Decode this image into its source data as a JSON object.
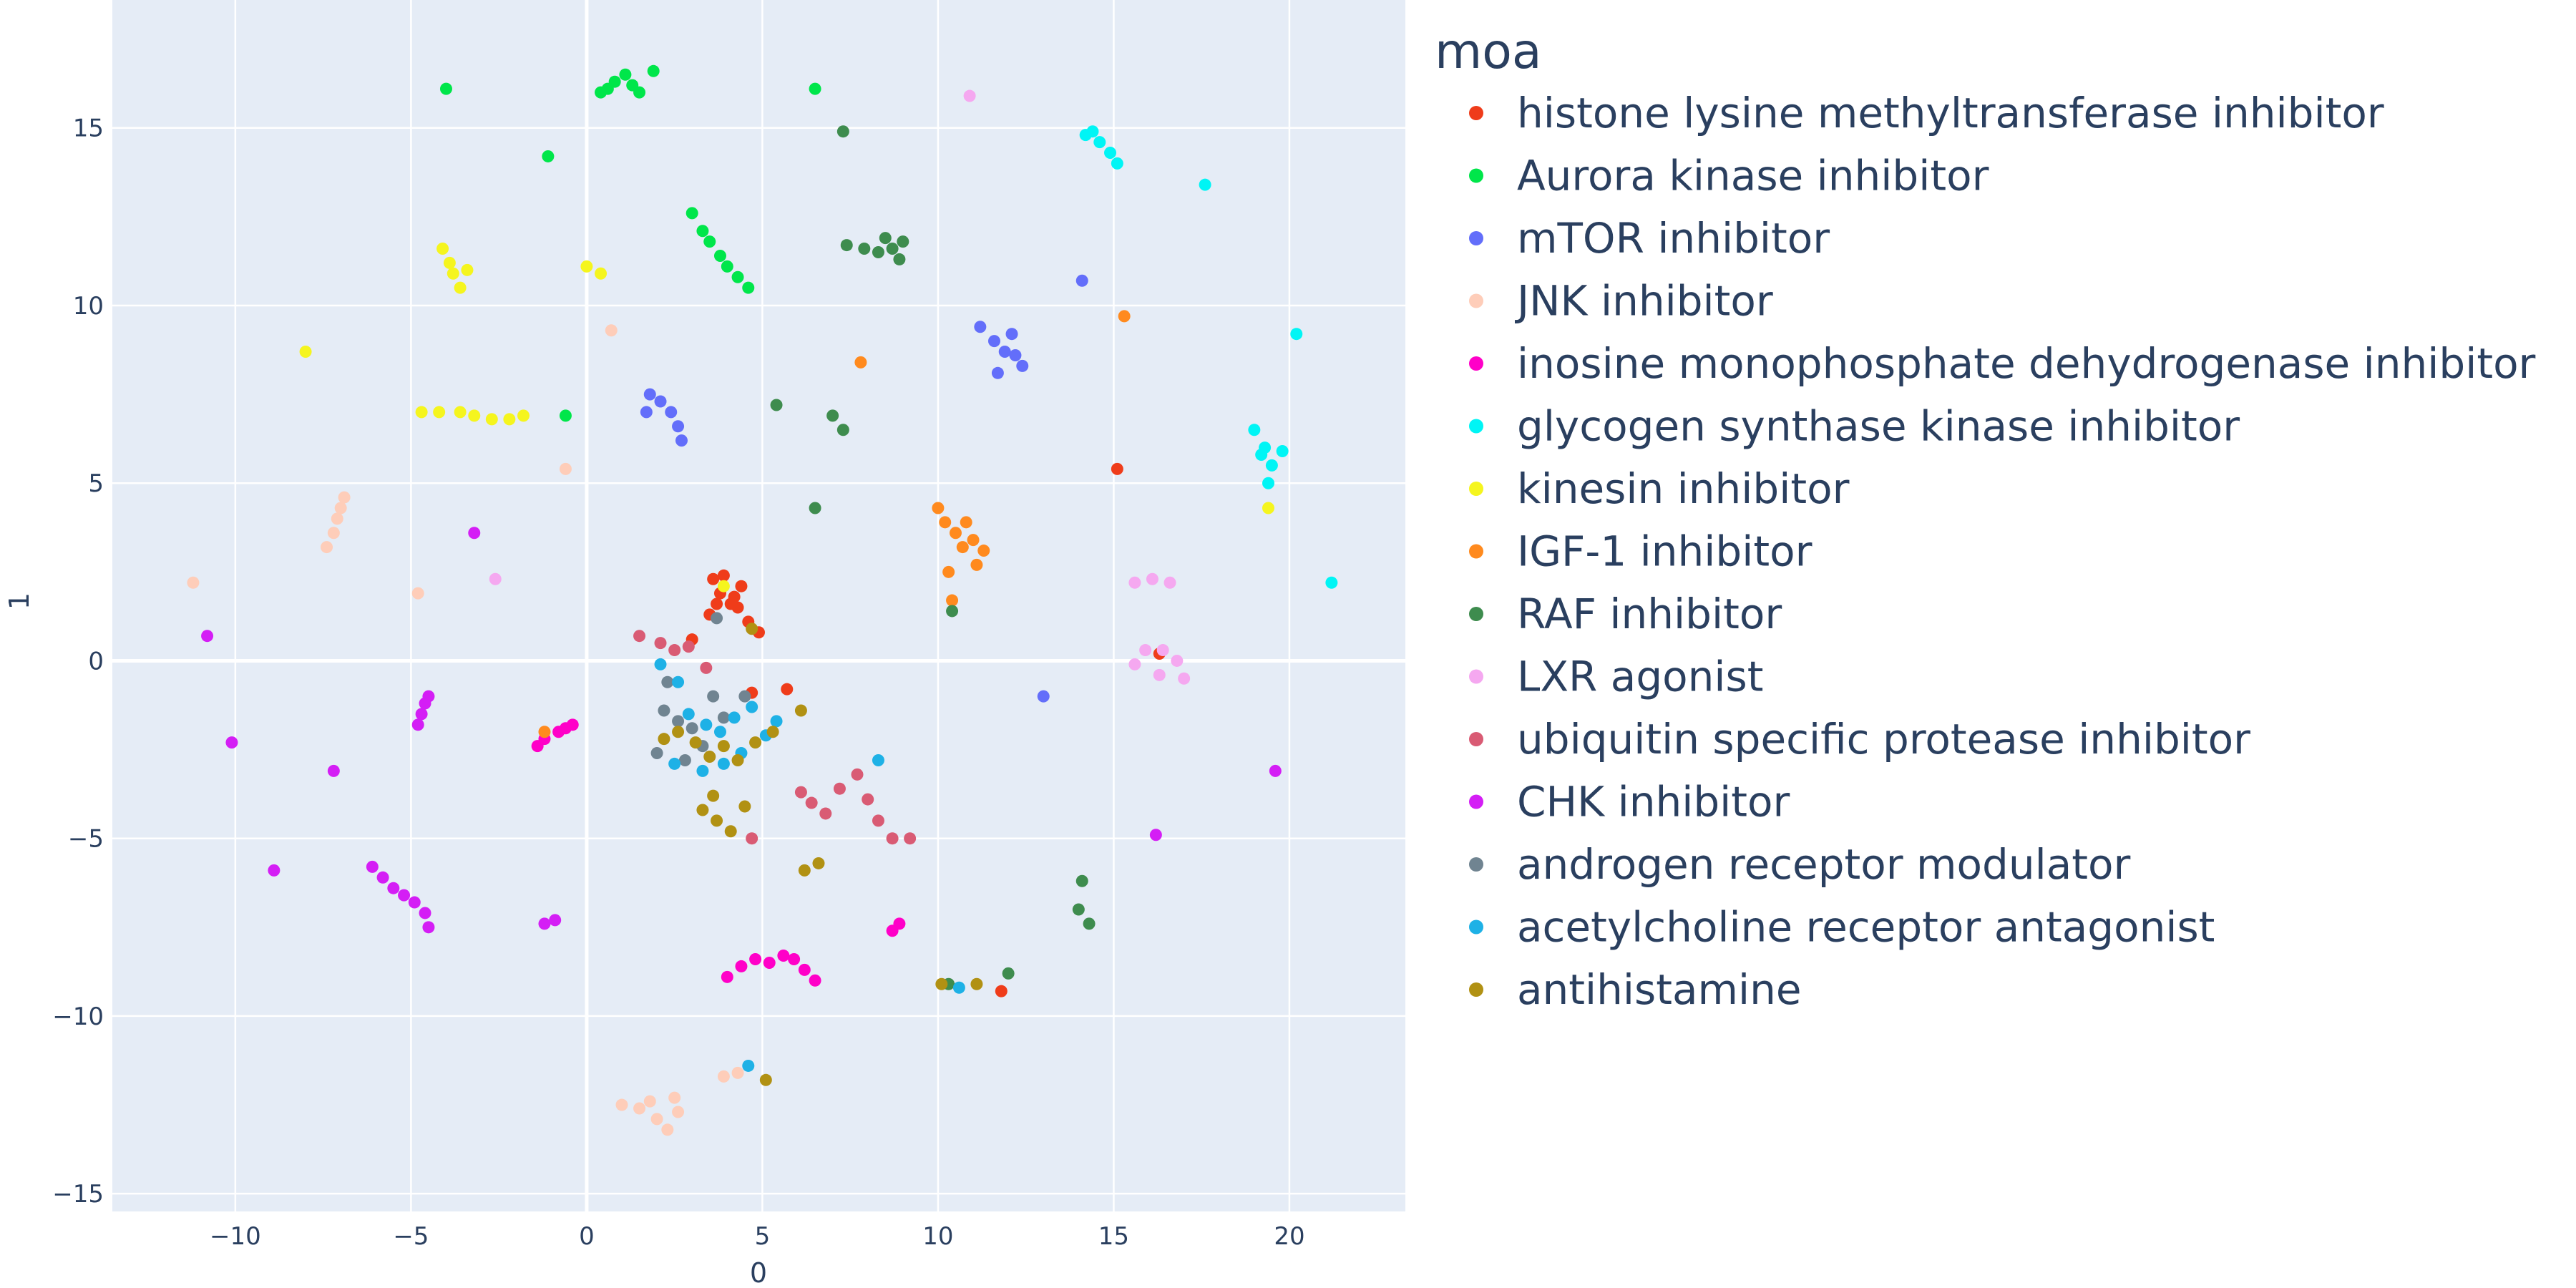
{
  "chart_data": {
    "type": "scatter",
    "title": "",
    "xlabel": "0",
    "ylabel": "1",
    "xlim": [
      -13.5,
      23.3
    ],
    "ylim": [
      -15.5,
      18.6
    ],
    "x_ticks": [
      -10,
      -5,
      0,
      5,
      10,
      15,
      20
    ],
    "y_ticks": [
      -15,
      -10,
      -5,
      0,
      5,
      10,
      15
    ],
    "x_tick_labels": [
      "−10",
      "−5",
      "0",
      "5",
      "10",
      "15",
      "20"
    ],
    "y_tick_labels": [
      "−15",
      "−10",
      "−5",
      "0",
      "5",
      "10",
      "15"
    ],
    "grid": true,
    "legend": {
      "title": "moa",
      "position": "right"
    },
    "colors": {
      "plot_background": "#e5ecf6",
      "grid": "#ffffff",
      "text": "#2a3f5f"
    },
    "series": [
      {
        "name": "histone lysine methyltransferase inhibitor",
        "color": "#EF3C1A",
        "points": [
          [
            3.6,
            2.3
          ],
          [
            3.8,
            1.9
          ],
          [
            4.1,
            1.6
          ],
          [
            4.4,
            2.1
          ],
          [
            3.9,
            2.4
          ],
          [
            4.2,
            1.8
          ],
          [
            4.6,
            1.1
          ],
          [
            4.9,
            0.8
          ],
          [
            3.5,
            1.3
          ],
          [
            4.3,
            1.5
          ],
          [
            3.0,
            0.6
          ],
          [
            5.7,
            -0.8
          ],
          [
            11.8,
            -9.3
          ],
          [
            15.1,
            5.4
          ],
          [
            16.3,
            0.2
          ],
          [
            4.7,
            -0.9
          ],
          [
            3.7,
            1.6
          ]
        ]
      },
      {
        "name": "Aurora kinase inhibitor",
        "color": "#00E64A",
        "points": [
          [
            0.4,
            16.0
          ],
          [
            0.8,
            16.3
          ],
          [
            1.1,
            16.5
          ],
          [
            1.3,
            16.2
          ],
          [
            1.5,
            16.0
          ],
          [
            0.6,
            16.1
          ],
          [
            1.9,
            16.6
          ],
          [
            -4.0,
            16.1
          ],
          [
            6.5,
            16.1
          ],
          [
            -1.1,
            14.2
          ],
          [
            -0.6,
            6.9
          ],
          [
            3.0,
            12.6
          ],
          [
            3.3,
            12.1
          ],
          [
            3.5,
            11.8
          ],
          [
            3.8,
            11.4
          ],
          [
            4.0,
            11.1
          ],
          [
            4.3,
            10.8
          ],
          [
            4.6,
            10.5
          ]
        ]
      },
      {
        "name": "mTOR inhibitor",
        "color": "#636EFA",
        "points": [
          [
            1.8,
            7.5
          ],
          [
            2.1,
            7.3
          ],
          [
            2.4,
            7.0
          ],
          [
            2.6,
            6.6
          ],
          [
            2.7,
            6.2
          ],
          [
            1.7,
            7.0
          ],
          [
            11.2,
            9.4
          ],
          [
            11.6,
            9.0
          ],
          [
            11.9,
            8.7
          ],
          [
            12.2,
            8.6
          ],
          [
            12.4,
            8.3
          ],
          [
            11.7,
            8.1
          ],
          [
            12.1,
            9.2
          ],
          [
            14.1,
            10.7
          ],
          [
            13.0,
            -1.0
          ]
        ]
      },
      {
        "name": "JNK inhibitor",
        "color": "#FECDB9",
        "points": [
          [
            -7.4,
            3.2
          ],
          [
            -7.2,
            3.6
          ],
          [
            -7.1,
            4.0
          ],
          [
            -7.0,
            4.3
          ],
          [
            -6.9,
            4.6
          ],
          [
            -11.2,
            2.2
          ],
          [
            -4.8,
            1.9
          ],
          [
            0.7,
            9.3
          ],
          [
            -0.6,
            5.4
          ],
          [
            1.0,
            -12.5
          ],
          [
            1.5,
            -12.6
          ],
          [
            2.0,
            -12.9
          ],
          [
            2.3,
            -13.2
          ],
          [
            2.6,
            -12.7
          ],
          [
            1.8,
            -12.4
          ],
          [
            2.5,
            -12.3
          ],
          [
            3.9,
            -11.7
          ],
          [
            4.3,
            -11.6
          ]
        ]
      },
      {
        "name": "inosine monophosphate dehydrogenase inhibitor",
        "color": "#FF00C8",
        "points": [
          [
            -1.2,
            -2.2
          ],
          [
            -0.8,
            -2.0
          ],
          [
            -0.6,
            -1.9
          ],
          [
            -0.4,
            -1.8
          ],
          [
            -1.4,
            -2.4
          ],
          [
            4.0,
            -8.9
          ],
          [
            4.4,
            -8.6
          ],
          [
            4.8,
            -8.4
          ],
          [
            5.2,
            -8.5
          ],
          [
            5.6,
            -8.3
          ],
          [
            5.9,
            -8.4
          ],
          [
            6.2,
            -8.7
          ],
          [
            6.5,
            -9.0
          ],
          [
            8.7,
            -7.6
          ],
          [
            8.9,
            -7.4
          ]
        ]
      },
      {
        "name": "glycogen synthase kinase inhibitor",
        "color": "#00F5F5",
        "points": [
          [
            14.2,
            14.8
          ],
          [
            14.6,
            14.6
          ],
          [
            14.9,
            14.3
          ],
          [
            15.1,
            14.0
          ],
          [
            14.4,
            14.9
          ],
          [
            17.6,
            13.4
          ],
          [
            20.2,
            9.2
          ],
          [
            19.0,
            6.5
          ],
          [
            19.2,
            5.8
          ],
          [
            19.5,
            5.5
          ],
          [
            19.8,
            5.9
          ],
          [
            19.4,
            5.0
          ],
          [
            19.3,
            6.0
          ],
          [
            21.2,
            2.2
          ]
        ]
      },
      {
        "name": "kinesin inhibitor",
        "color": "#F5F51E",
        "points": [
          [
            -4.1,
            11.6
          ],
          [
            -3.9,
            11.2
          ],
          [
            -3.8,
            10.9
          ],
          [
            -3.6,
            10.5
          ],
          [
            -3.4,
            11.0
          ],
          [
            0.0,
            11.1
          ],
          [
            0.4,
            10.9
          ],
          [
            -8.0,
            8.7
          ],
          [
            -4.7,
            7.0
          ],
          [
            -4.2,
            7.0
          ],
          [
            -3.6,
            7.0
          ],
          [
            -3.2,
            6.9
          ],
          [
            -2.7,
            6.8
          ],
          [
            -2.2,
            6.8
          ],
          [
            -1.8,
            6.9
          ],
          [
            19.4,
            4.3
          ],
          [
            3.9,
            2.1
          ]
        ]
      },
      {
        "name": "IGF-1 inhibitor",
        "color": "#FF8A1E",
        "points": [
          [
            10.0,
            4.3
          ],
          [
            10.2,
            3.9
          ],
          [
            10.5,
            3.6
          ],
          [
            10.7,
            3.2
          ],
          [
            11.0,
            3.4
          ],
          [
            11.3,
            3.1
          ],
          [
            11.1,
            2.7
          ],
          [
            10.3,
            2.5
          ],
          [
            10.8,
            3.9
          ],
          [
            10.4,
            1.7
          ],
          [
            15.3,
            9.7
          ],
          [
            7.8,
            8.4
          ],
          [
            -1.2,
            -2.0
          ]
        ]
      },
      {
        "name": "RAF inhibitor",
        "color": "#3E8C4E",
        "points": [
          [
            7.4,
            11.7
          ],
          [
            7.9,
            11.6
          ],
          [
            8.3,
            11.5
          ],
          [
            8.7,
            11.6
          ],
          [
            9.0,
            11.8
          ],
          [
            8.9,
            11.3
          ],
          [
            8.5,
            11.9
          ],
          [
            7.3,
            14.9
          ],
          [
            7.0,
            6.9
          ],
          [
            7.3,
            6.5
          ],
          [
            5.4,
            7.2
          ],
          [
            6.5,
            4.3
          ],
          [
            14.1,
            -6.2
          ],
          [
            14.0,
            -7.0
          ],
          [
            14.3,
            -7.4
          ],
          [
            10.4,
            1.4
          ],
          [
            10.3,
            -9.1
          ],
          [
            12.0,
            -8.8
          ]
        ]
      },
      {
        "name": "LXR agonist",
        "color": "#F5A8F0",
        "points": [
          [
            10.9,
            15.9
          ],
          [
            15.6,
            2.2
          ],
          [
            16.1,
            2.3
          ],
          [
            16.6,
            2.2
          ],
          [
            15.6,
            -0.1
          ],
          [
            15.9,
            0.3
          ],
          [
            16.3,
            -0.4
          ],
          [
            16.8,
            0.0
          ],
          [
            17.0,
            -0.5
          ],
          [
            16.4,
            0.3
          ],
          [
            -2.6,
            2.3
          ]
        ]
      },
      {
        "name": "ubiquitin specific protease inhibitor",
        "color": "#D95B74",
        "points": [
          [
            1.5,
            0.7
          ],
          [
            2.1,
            0.5
          ],
          [
            2.5,
            0.3
          ],
          [
            3.4,
            -0.2
          ],
          [
            4.7,
            -5.0
          ],
          [
            6.1,
            -3.7
          ],
          [
            6.4,
            -4.0
          ],
          [
            6.8,
            -4.3
          ],
          [
            7.2,
            -3.6
          ],
          [
            7.7,
            -3.2
          ],
          [
            8.0,
            -3.9
          ],
          [
            8.3,
            -4.5
          ],
          [
            8.7,
            -5.0
          ],
          [
            9.2,
            -5.0
          ],
          [
            2.9,
            0.4
          ]
        ]
      },
      {
        "name": "CHK inhibitor",
        "color": "#D41EF5",
        "points": [
          [
            -10.8,
            0.7
          ],
          [
            -10.1,
            -2.3
          ],
          [
            -7.2,
            -3.1
          ],
          [
            -4.8,
            -1.8
          ],
          [
            -4.7,
            -1.5
          ],
          [
            -4.6,
            -1.2
          ],
          [
            -4.5,
            -1.0
          ],
          [
            -3.2,
            3.6
          ],
          [
            -8.9,
            -5.9
          ],
          [
            -6.1,
            -5.8
          ],
          [
            -5.8,
            -6.1
          ],
          [
            -5.5,
            -6.4
          ],
          [
            -5.2,
            -6.6
          ],
          [
            -4.9,
            -6.8
          ],
          [
            -4.6,
            -7.1
          ],
          [
            -4.5,
            -7.5
          ],
          [
            -1.2,
            -7.4
          ],
          [
            -0.9,
            -7.3
          ],
          [
            16.2,
            -4.9
          ],
          [
            19.6,
            -3.1
          ]
        ]
      },
      {
        "name": "androgen receptor modulator",
        "color": "#708491",
        "points": [
          [
            2.2,
            -1.4
          ],
          [
            2.6,
            -1.7
          ],
          [
            3.0,
            -1.9
          ],
          [
            3.3,
            -2.4
          ],
          [
            2.0,
            -2.6
          ],
          [
            2.8,
            -2.8
          ],
          [
            3.6,
            -1.0
          ],
          [
            2.3,
            -0.6
          ],
          [
            4.5,
            -1.0
          ],
          [
            3.9,
            -1.6
          ],
          [
            3.7,
            1.2
          ]
        ]
      },
      {
        "name": "acetylcholine receptor antagonist",
        "color": "#1EB1E6",
        "points": [
          [
            2.1,
            -0.1
          ],
          [
            2.6,
            -0.6
          ],
          [
            2.9,
            -1.5
          ],
          [
            3.4,
            -1.8
          ],
          [
            3.8,
            -2.0
          ],
          [
            4.2,
            -1.6
          ],
          [
            4.7,
            -1.3
          ],
          [
            5.1,
            -2.1
          ],
          [
            5.4,
            -1.7
          ],
          [
            4.4,
            -2.6
          ],
          [
            3.9,
            -2.9
          ],
          [
            3.3,
            -3.1
          ],
          [
            2.5,
            -2.9
          ],
          [
            8.3,
            -2.8
          ],
          [
            4.6,
            -11.4
          ],
          [
            10.6,
            -9.2
          ]
        ]
      },
      {
        "name": "antihistamine",
        "color": "#B19113",
        "points": [
          [
            2.2,
            -2.2
          ],
          [
            2.6,
            -2.0
          ],
          [
            3.1,
            -2.3
          ],
          [
            3.5,
            -2.7
          ],
          [
            3.9,
            -2.4
          ],
          [
            4.3,
            -2.8
          ],
          [
            4.8,
            -2.3
          ],
          [
            5.3,
            -2.0
          ],
          [
            6.1,
            -1.4
          ],
          [
            3.3,
            -4.2
          ],
          [
            3.7,
            -4.5
          ],
          [
            4.1,
            -4.8
          ],
          [
            4.5,
            -4.1
          ],
          [
            3.6,
            -3.8
          ],
          [
            6.2,
            -5.9
          ],
          [
            6.6,
            -5.7
          ],
          [
            4.7,
            0.9
          ],
          [
            10.1,
            -9.1
          ],
          [
            11.1,
            -9.1
          ],
          [
            5.1,
            -11.8
          ]
        ]
      }
    ]
  }
}
